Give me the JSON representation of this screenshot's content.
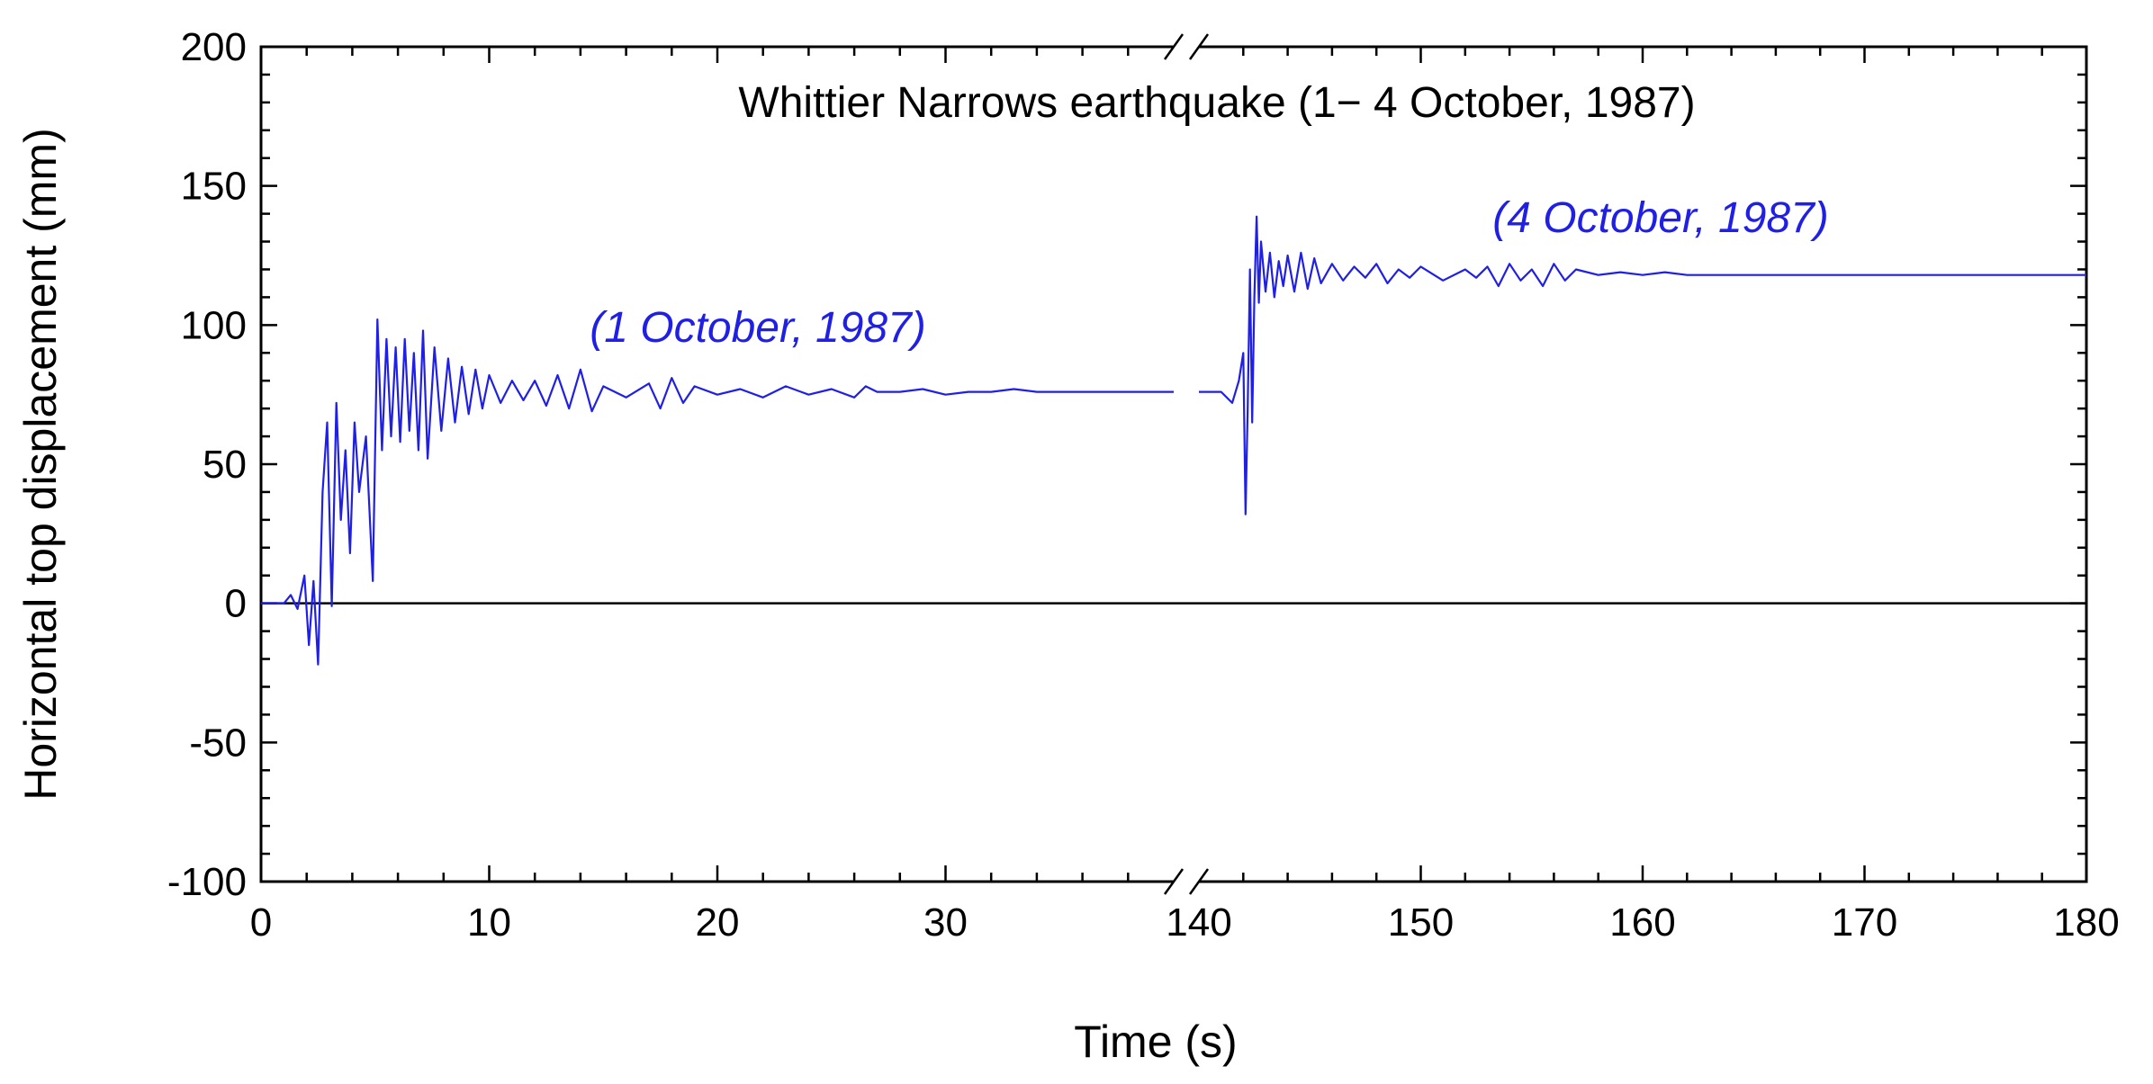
{
  "chart_data": {
    "type": "line",
    "title": "Whittier Narrows earthquake (1− 4 October, 1987)",
    "xlabel": "Time (s)",
    "ylabel": "Horizontal top displacement (mm)",
    "ylim": [
      -100,
      200
    ],
    "y_ticks": [
      -100,
      -50,
      0,
      50,
      100,
      150,
      200
    ],
    "x_axis_break": true,
    "x_segments": [
      {
        "name": "left",
        "xlim": [
          0,
          40
        ],
        "ticks": [
          0,
          10,
          20,
          30
        ],
        "shown_until": 40
      },
      {
        "name": "right",
        "xlim": [
          140,
          180
        ],
        "ticks": [
          140,
          150,
          160,
          170,
          180
        ],
        "shown_from": 140
      }
    ],
    "zero_line": true,
    "grid": false,
    "series_color": "#1f1fe6",
    "series": [
      {
        "name": "1 October, 1987",
        "label": "(1 October, 1987)",
        "segment": "left",
        "x": [
          0,
          1.0,
          1.3,
          1.6,
          1.9,
          2.1,
          2.3,
          2.5,
          2.7,
          2.9,
          3.1,
          3.3,
          3.5,
          3.7,
          3.9,
          4.1,
          4.3,
          4.6,
          4.9,
          5.1,
          5.3,
          5.5,
          5.7,
          5.9,
          6.1,
          6.3,
          6.5,
          6.7,
          6.9,
          7.1,
          7.3,
          7.6,
          7.9,
          8.2,
          8.5,
          8.8,
          9.1,
          9.4,
          9.7,
          10.0,
          10.5,
          11.0,
          11.5,
          12.0,
          12.5,
          13.0,
          13.5,
          14.0,
          14.5,
          15.0,
          16.0,
          17.0,
          17.5,
          18.0,
          18.5,
          19.0,
          20.0,
          21.0,
          22.0,
          23.0,
          24.0,
          25.0,
          26.0,
          26.5,
          27.0,
          28.0,
          29.0,
          30.0,
          31.0,
          32.0,
          33.0,
          34.0,
          35.0,
          36.0,
          37.0,
          38.0,
          39.0,
          40.0
        ],
        "y": [
          0,
          0,
          3,
          -2,
          10,
          -15,
          8,
          -22,
          40,
          65,
          -1,
          72,
          30,
          55,
          18,
          65,
          40,
          60,
          8,
          102,
          55,
          95,
          60,
          92,
          58,
          95,
          62,
          90,
          55,
          98,
          52,
          92,
          62,
          88,
          65,
          85,
          68,
          84,
          70,
          82,
          72,
          80,
          73,
          80,
          71,
          82,
          70,
          84,
          69,
          78,
          74,
          79,
          70,
          81,
          72,
          78,
          75,
          77,
          74,
          78,
          75,
          77,
          74,
          78,
          76,
          76,
          77,
          75,
          76,
          76,
          77,
          76,
          76,
          76,
          76,
          76,
          76,
          76
        ]
      },
      {
        "name": "4 October, 1987",
        "label": "(4 October, 1987)",
        "segment": "right",
        "x": [
          140,
          141.0,
          141.5,
          141.8,
          142.0,
          142.1,
          142.2,
          142.3,
          142.4,
          142.5,
          142.6,
          142.7,
          142.8,
          143.0,
          143.2,
          143.4,
          143.6,
          143.8,
          144.0,
          144.3,
          144.6,
          144.9,
          145.2,
          145.5,
          146.0,
          146.5,
          147.0,
          147.5,
          148.0,
          148.5,
          149.0,
          149.5,
          150.0,
          151.0,
          152.0,
          152.5,
          153.0,
          153.5,
          154.0,
          154.5,
          155.0,
          155.5,
          156.0,
          156.5,
          157.0,
          158.0,
          159.0,
          160.0,
          161.0,
          162.0,
          163.0,
          170.0,
          180.0
        ],
        "y": [
          76,
          76,
          72,
          80,
          90,
          32,
          70,
          120,
          65,
          110,
          139,
          108,
          130,
          112,
          126,
          110,
          123,
          114,
          125,
          112,
          126,
          113,
          124,
          115,
          122,
          116,
          121,
          117,
          122,
          115,
          120,
          117,
          121,
          116,
          120,
          117,
          121,
          114,
          122,
          116,
          120,
          114,
          122,
          116,
          120,
          118,
          119,
          118,
          119,
          118,
          118,
          118,
          118
        ]
      }
    ]
  }
}
